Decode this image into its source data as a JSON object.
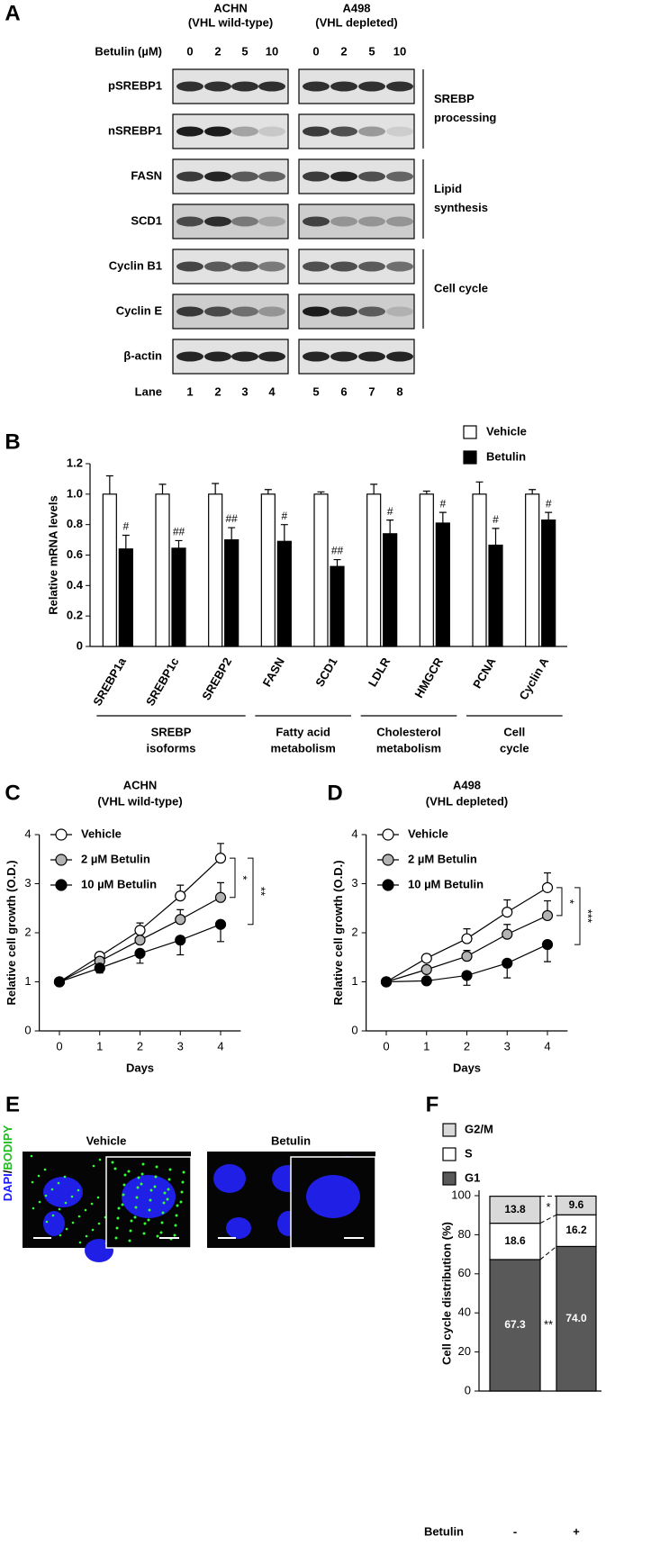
{
  "panel_labels": [
    "A",
    "B",
    "C",
    "D",
    "E",
    "F"
  ],
  "blot": {
    "cell_lines": [
      {
        "name": "ACHN",
        "note": "(VHL wild-type)"
      },
      {
        "name": "A498",
        "note": "(VHL depleted)"
      }
    ],
    "dose_label": "Betulin (µM)",
    "doses": [
      0,
      2,
      5,
      10,
      0,
      2,
      5,
      10
    ],
    "proteins": [
      "pSREBP1",
      "nSREBP1",
      "FASN",
      "SCD1",
      "Cyclin B1",
      "Cyclin E",
      "β-actin"
    ],
    "groups": [
      [
        "SREBP",
        "processing"
      ],
      [
        "Lipid",
        "synthesis"
      ],
      [
        "Cell cycle"
      ]
    ],
    "lane_label": "Lane",
    "lanes": [
      1,
      2,
      3,
      4,
      5,
      6,
      7,
      8
    ]
  },
  "imaging": {
    "stain_label": [
      "DAPI",
      "/",
      "BODIPY"
    ],
    "conditions": [
      "Vehicle",
      "Betulin"
    ]
  },
  "chart_data": [
    {
      "type": "bar",
      "y_label": "Relative mRNA levels",
      "categories": [
        "SREBP1a",
        "SREBP1c",
        "SREBP2",
        "FASN",
        "SCD1",
        "LDLR",
        "HMGCR",
        "PCNA",
        "Cyclin A"
      ],
      "groups": [
        [
          "SREBP",
          "isoforms"
        ],
        [
          "Fatty acid",
          "metabolism"
        ],
        [
          "Cholesterol",
          "metabolism"
        ],
        [
          "Cell",
          "cycle"
        ]
      ],
      "series": [
        {
          "name": "Vehicle",
          "color": "#ffffff",
          "values": [
            1,
            1,
            1,
            1,
            1,
            1,
            1,
            1,
            1
          ],
          "errors": [
            0.12,
            0.065,
            0.07,
            0.03,
            0.015,
            0.065,
            0.02,
            0.08,
            0.03
          ]
        },
        {
          "name": "Betulin",
          "color": "#000000",
          "values": [
            0.64,
            0.645,
            0.7,
            0.69,
            0.525,
            0.74,
            0.81,
            0.665,
            0.83
          ],
          "errors": [
            0.09,
            0.05,
            0.08,
            0.11,
            0.045,
            0.09,
            0.07,
            0.11,
            0.05
          ],
          "annotations": [
            "#",
            "##",
            "##",
            "#",
            "##",
            "#",
            "#",
            "#",
            "#"
          ]
        }
      ],
      "ylim": [
        0,
        1.2
      ],
      "yticks": [
        0,
        0.2,
        0.4,
        0.6,
        0.8,
        {
          "value": 1,
          "label": "1.0"
        },
        1.2
      ]
    },
    {
      "type": "line",
      "title": [
        "ACHN",
        "(VHL wild-type)"
      ],
      "x_label": "Days",
      "y_label": "Relative cell growth (O.D.)",
      "x": [
        0,
        1,
        2,
        3,
        4
      ],
      "series": [
        {
          "name": "Vehicle",
          "color": "#ffffff",
          "values": [
            1,
            1.52,
            2.05,
            2.75,
            3.52
          ],
          "errors": [
            0,
            0.08,
            0.15,
            0.22,
            0.3
          ]
        },
        {
          "name": "2 µM Betulin",
          "color": "#b3b3b3",
          "values": [
            1,
            1.42,
            1.85,
            2.27,
            2.72
          ],
          "errors": [
            0,
            0.08,
            0.12,
            0.2,
            0.3
          ]
        },
        {
          "name": "10 µM Betulin",
          "color": "#000000",
          "values": [
            1,
            1.28,
            1.58,
            1.85,
            2.17
          ],
          "errors": [
            0,
            0.1,
            0.2,
            0.3,
            0.35
          ]
        }
      ],
      "xlim": [
        -0.5,
        4.5
      ],
      "xticks": [
        0,
        1,
        2,
        3,
        4
      ],
      "ylim": [
        0,
        4
      ],
      "yticks": [
        0,
        1,
        2,
        3,
        4
      ],
      "significance": [
        "*",
        "**"
      ]
    },
    {
      "type": "line",
      "title": [
        "A498",
        "(VHL depleted)"
      ],
      "x_label": "Days",
      "y_label": "Relative cell growth (O.D.)",
      "x": [
        0,
        1,
        2,
        3,
        4
      ],
      "series": [
        {
          "name": "Vehicle",
          "color": "#ffffff",
          "values": [
            1,
            1.48,
            1.88,
            2.42,
            2.92
          ],
          "errors": [
            0,
            0.08,
            0.2,
            0.25,
            0.3
          ]
        },
        {
          "name": "2 µM Betulin",
          "color": "#b3b3b3",
          "values": [
            1,
            1.25,
            1.52,
            1.97,
            2.35
          ],
          "errors": [
            0,
            0.08,
            0.12,
            0.2,
            0.3
          ]
        },
        {
          "name": "10 µM Betulin",
          "color": "#000000",
          "values": [
            1,
            1.02,
            1.13,
            1.38,
            1.76
          ],
          "errors": [
            0,
            0.05,
            0.2,
            0.3,
            0.35
          ]
        }
      ],
      "xlim": [
        -0.5,
        4.5
      ],
      "xticks": [
        0,
        1,
        2,
        3,
        4
      ],
      "ylim": [
        0,
        4
      ],
      "yticks": [
        0,
        1,
        2,
        3,
        4
      ],
      "significance": [
        "*",
        "***"
      ]
    },
    {
      "type": "stacked_bar",
      "y_label": "Cell cycle distribution (%)",
      "x_label": "Betulin",
      "categories": [
        "-",
        "+"
      ],
      "series": [
        {
          "name": "G1",
          "color": "#595959",
          "values": [
            67.3,
            74.0
          ],
          "value_labels": [
            "67.3",
            "74.0"
          ]
        },
        {
          "name": "S",
          "color": "#ffffff",
          "values": [
            18.6,
            16.2
          ]
        },
        {
          "name": "G2/M",
          "color": "#d9d9d9",
          "values": [
            13.8,
            9.6
          ]
        }
      ],
      "ylim": [
        0,
        100
      ],
      "yticks": [
        0,
        20,
        40,
        60,
        80,
        100
      ],
      "significance": [
        "*",
        "**"
      ]
    }
  ]
}
